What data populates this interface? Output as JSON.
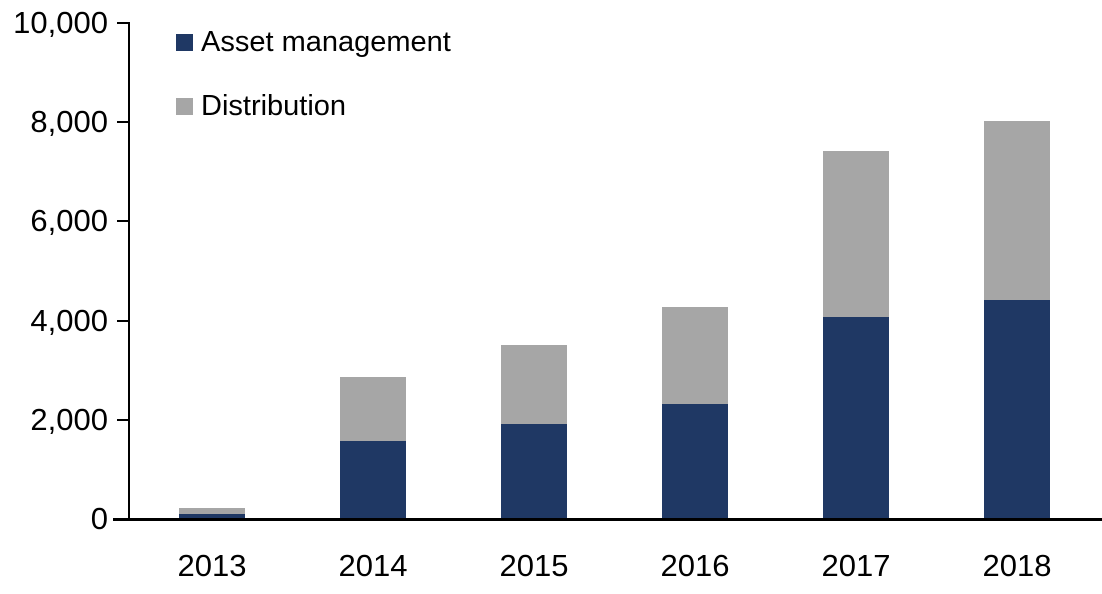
{
  "chart_data": {
    "type": "bar",
    "stacked": true,
    "title": "",
    "categories": [
      "2013",
      "2014",
      "2015",
      "2016",
      "2017",
      "2018"
    ],
    "series": [
      {
        "name": "Asset management",
        "color": "#1F3864",
        "values": [
          80,
          1550,
          1900,
          2300,
          4050,
          4400
        ]
      },
      {
        "name": "Distribution",
        "color": "#A6A6A6",
        "values": [
          120,
          1300,
          1600,
          1950,
          3350,
          3600
        ]
      }
    ],
    "totals": [
      200,
      2850,
      3500,
      4250,
      7400,
      8000
    ],
    "ylim": [
      0,
      10000
    ],
    "ytick_interval": 2000,
    "ytick_labels": [
      "0",
      "2,000",
      "4,000",
      "6,000",
      "8,000",
      "10,000"
    ],
    "xlabel": "",
    "ylabel": "",
    "grid": false,
    "legend_position": "top-left-inside"
  },
  "colors": {
    "axis": "#000000",
    "text": "#000000",
    "background": "#FFFFFF"
  }
}
